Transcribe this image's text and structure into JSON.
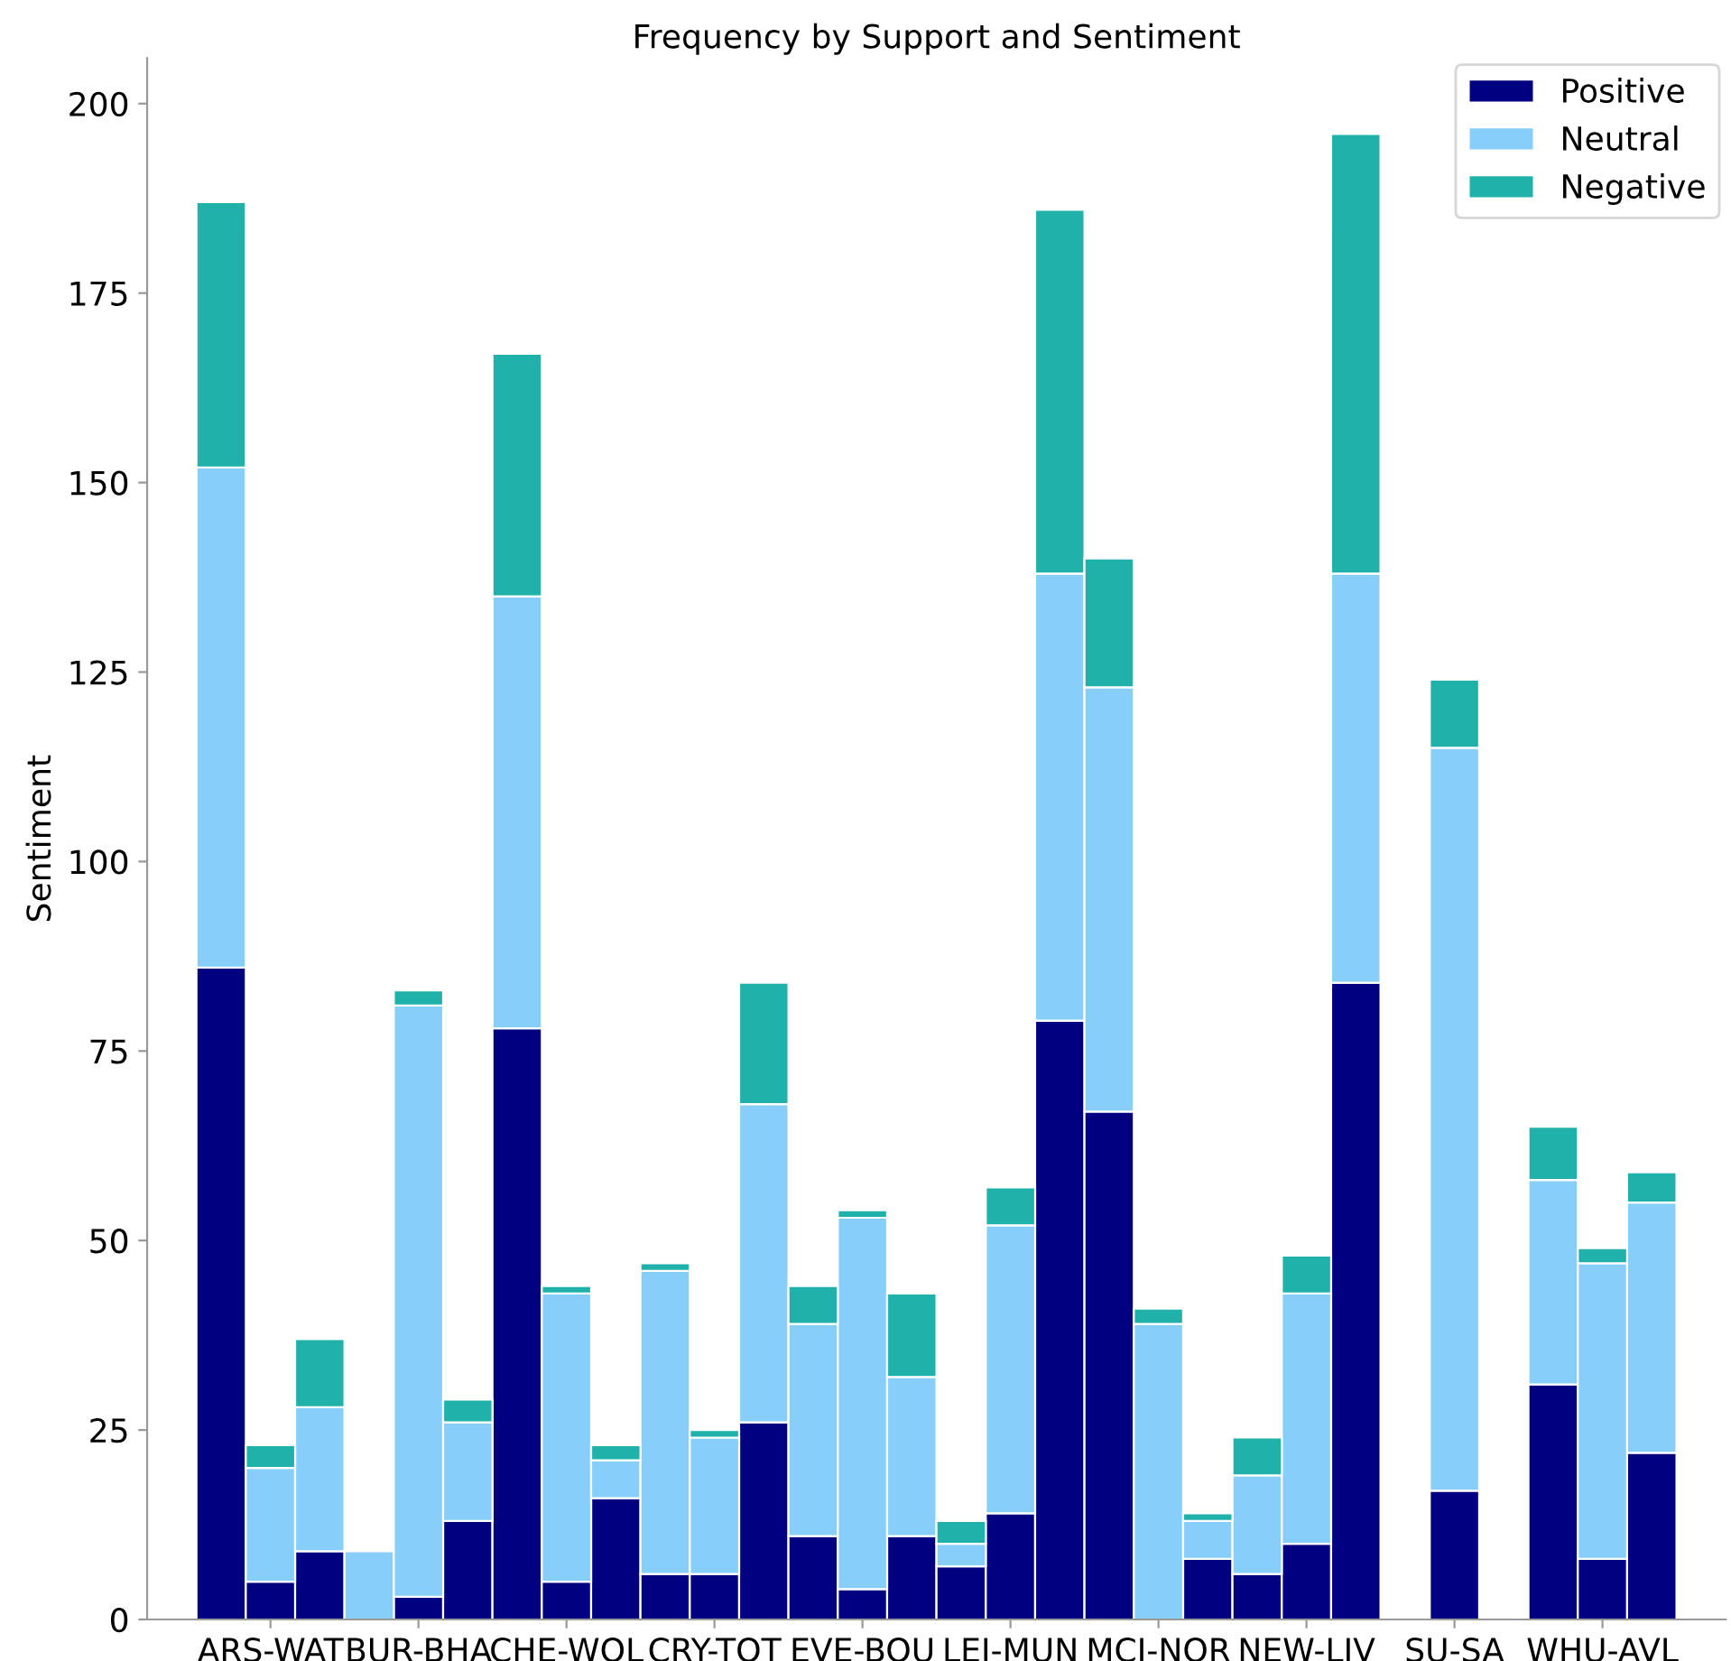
{
  "chart_data": {
    "type": "bar",
    "title": "Frequency by Support and Sentiment",
    "ylabel": "Sentiment",
    "categories": [
      null,
      "ARS-WAT",
      null,
      null,
      "BUR-BHA",
      null,
      null,
      "CHE-WOL",
      null,
      null,
      "CRY-TOT",
      null,
      null,
      "EVE-BOU",
      null,
      null,
      "LEI-MUN",
      null,
      null,
      "MCI-NOR",
      null,
      null,
      "NEW-LIV",
      null,
      null,
      "SU-SA",
      null,
      null,
      "WHU-AVL",
      null
    ],
    "stacked": true,
    "series": [
      {
        "name": "Positive",
        "color": "#000080",
        "values": [
          86,
          5,
          9,
          0,
          3,
          13,
          78,
          5,
          16,
          6,
          6,
          26,
          11,
          4,
          11,
          7,
          14,
          79,
          67,
          0,
          8,
          6,
          10,
          84,
          0,
          17,
          0,
          31,
          8,
          22
        ]
      },
      {
        "name": "Neutral",
        "color": "#87cefa",
        "values": [
          66,
          15,
          19,
          9,
          78,
          13,
          57,
          38,
          5,
          40,
          18,
          42,
          28,
          49,
          21,
          3,
          38,
          59,
          56,
          39,
          5,
          13,
          33,
          54,
          0,
          98,
          0,
          27,
          39,
          33
        ]
      },
      {
        "name": "Negative",
        "color": "#20b2aa",
        "values": [
          35,
          3,
          9,
          0,
          2,
          3,
          32,
          1,
          2,
          1,
          1,
          16,
          5,
          1,
          11,
          3,
          5,
          48,
          17,
          2,
          1,
          5,
          5,
          58,
          0,
          9,
          0,
          7,
          2,
          4
        ]
      }
    ],
    "ylim": [
      0,
      206
    ],
    "yticks": [
      0,
      25,
      50,
      75,
      100,
      125,
      150,
      175,
      200
    ],
    "legend": "top right",
    "grid": false
  }
}
